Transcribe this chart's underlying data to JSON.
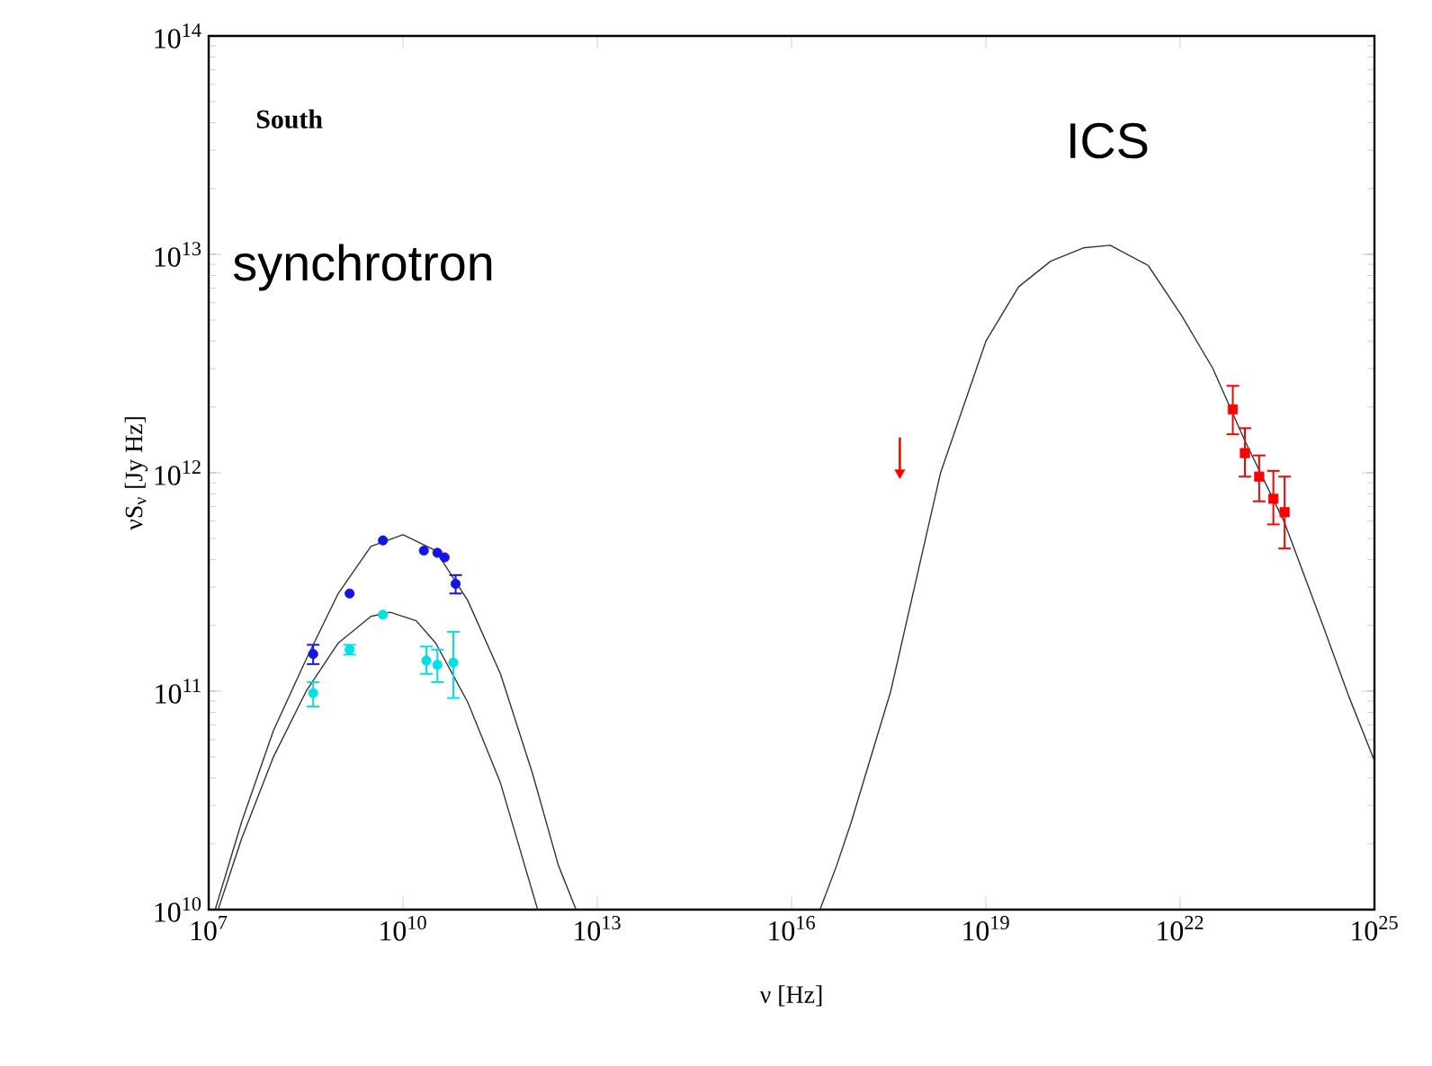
{
  "chart_data": {
    "type": "scatter",
    "xlabel": "ν [Hz]",
    "ylabel": "νS$_{ν}$ [Jy Hz]",
    "log": "xy",
    "grid": false,
    "xlim": [
      10000000.0,
      1e+25
    ],
    "ylim": [
      10000000000.0,
      100000000000000.0
    ],
    "xticks": [
      {
        "value": 10000000.0,
        "label": "10$^{7}$"
      },
      {
        "value": 10000000000.0,
        "label": "10$^{10}$"
      },
      {
        "value": 10000000000000.0,
        "label": "10$^{13}$"
      },
      {
        "value": 1e+16,
        "label": "10$^{16}$"
      },
      {
        "value": 1e+19,
        "label": "10$^{19}$"
      },
      {
        "value": 1e+22,
        "label": "10$^{22}$"
      },
      {
        "value": 1e+25,
        "label": "10$^{25}$"
      }
    ],
    "yticks": [
      {
        "value": 10000000000.0,
        "label": "10$^{10}$"
      },
      {
        "value": 100000000000.0,
        "label": "10$^{11}$"
      },
      {
        "value": 1000000000000.0,
        "label": "10$^{12}$"
      },
      {
        "value": 10000000000000.0,
        "label": "10$^{13}$"
      },
      {
        "value": 100000000000000.0,
        "label": "10$^{14}$"
      }
    ],
    "annotations": [
      "South",
      "synchrotron",
      "ICS"
    ],
    "series": [
      {
        "type": "line",
        "color": "#333333",
        "marker": "none",
        "x": [
          12600000.0,
          32000000.0,
          100000000.0,
          320000000.0,
          1000000000.0,
          3200000000.0,
          10000000000.0,
          32000000000.0,
          100000000000.0,
          320000000000.0,
          1000000000000.0,
          2500000000000.0,
          4700000000000.0
        ],
        "values": [
          10000000000.0,
          25000000000.0,
          66000000000.0,
          140000000000.0,
          280000000000.0,
          460000000000.0,
          520000000000.0,
          440000000000.0,
          260000000000.0,
          120000000000.0,
          42000000000.0,
          16000000000.0,
          10000000000.0
        ]
      },
      {
        "type": "line",
        "color": "#333333",
        "marker": "none",
        "x": [
          14000000.0,
          32000000.0,
          100000000.0,
          320000000.0,
          1000000000.0,
          3200000000.0,
          6300000000.0,
          16000000000.0,
          32000000000.0,
          100000000000.0,
          320000000000.0,
          1200000000000.0
        ],
        "values": [
          10000000000.0,
          21000000000.0,
          50000000000.0,
          100000000000.0,
          166000000000.0,
          220000000000.0,
          230000000000.0,
          210000000000.0,
          166000000000.0,
          89000000000.0,
          38000000000.0,
          10000000000.0
        ]
      },
      {
        "type": "line",
        "color": "#333333",
        "marker": "none",
        "x": [
          2.75e+16,
          5e+16,
          8.3e+16,
          3.4e+17,
          2e+18,
          1e+19,
          3.2e+19,
          1e+20,
          3.2e+20,
          8.3e+20,
          3.2e+21,
          1.07e+22,
          3.2e+22,
          1e+23,
          4e+23,
          1.6e+24,
          4e+24,
          1e+25
        ],
        "values": [
          10000000000.0,
          16000000000.0,
          25000000000.0,
          100000000000.0,
          1000000000000.0,
          4000000000000.0,
          7100000000000.0,
          9300000000000.0,
          10700000000000.0,
          11000000000000.0,
          8900000000000.0,
          5200000000000.0,
          3000000000000.0,
          1400000000000.0,
          600000000000.0,
          200000000000.0,
          95000000000.0,
          48000000000.0
        ]
      },
      {
        "type": "scatter",
        "color": "#1414e6",
        "marker": "circle",
        "x": [
          410000000.0,
          1500000000.0,
          4900000000.0,
          21000000000.0,
          34000000000.0,
          44000000000.0,
          65000000000.0
        ],
        "values": [
          148000000000.0,
          280000000000.0,
          490000000000.0,
          440000000000.0,
          430000000000.0,
          410000000000.0,
          310000000000.0
        ],
        "errors": [
          15000000000.0,
          null,
          null,
          null,
          null,
          null,
          30000000000.0
        ]
      },
      {
        "type": "scatter",
        "color": "#00e0e6",
        "marker": "circle",
        "x": [
          410000000.0,
          1500000000.0,
          4900000000.0,
          23000000000.0,
          34000000000.0,
          60000000000.0
        ],
        "values": [
          98000000000.0,
          155000000000.0,
          224000000000.0,
          138000000000.0,
          132000000000.0,
          135000000000.0
        ],
        "errors": [
          [
            85000000000.0,
            110000000000.0
          ],
          8000000000.0,
          null,
          [
            120000000000.0,
            160000000000.0
          ],
          [
            110000000000.0,
            155000000000.0
          ],
          [
            93000000000.0,
            187000000000.0
          ]
        ]
      },
      {
        "type": "scatter",
        "color": "#ff0000",
        "marker": "square",
        "x": [
          6.5e+22,
          1e+23,
          1.66e+23,
          2.75e+23,
          4.1e+23
        ],
        "values": [
          1950000000000.0,
          1230000000000.0,
          960000000000.0,
          760000000000.0,
          660000000000.0
        ],
        "errors": [
          [
            1500000000000.0,
            2500000000000.0
          ],
          [
            960000000000.0,
            1600000000000.0
          ],
          [
            740000000000.0,
            1200000000000.0
          ],
          [
            580000000000.0,
            1020000000000.0
          ],
          [
            450000000000.0,
            960000000000.0
          ]
        ]
      },
      {
        "type": "scatter",
        "color": "#ff0000",
        "marker": "triangle",
        "x": [
          4.7e+17
        ],
        "values": [
          1000000000000.0
        ],
        "errors": [
          [
            1000000000000.0,
            1450000000000.0
          ]
        ]
      }
    ]
  }
}
